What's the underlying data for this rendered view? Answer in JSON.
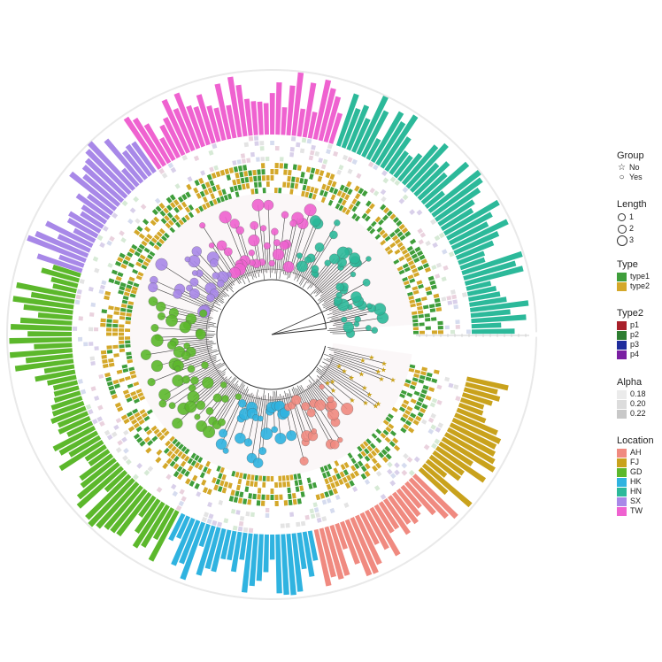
{
  "legends": {
    "group": {
      "title": "Group",
      "items": [
        {
          "label": "No",
          "symbol": "☆"
        },
        {
          "label": "Yes",
          "symbol": "○"
        }
      ]
    },
    "length": {
      "title": "Length",
      "items": [
        {
          "label": "1",
          "size": 1
        },
        {
          "label": "2",
          "size": 2
        },
        {
          "label": "3",
          "size": 3
        }
      ]
    },
    "type": {
      "title": "Type",
      "items": [
        {
          "label": "type1",
          "color": "#3f9e3b"
        },
        {
          "label": "type2",
          "color": "#d4a82a"
        }
      ]
    },
    "type2": {
      "title": "Type2",
      "items": [
        {
          "label": "p1",
          "color": "#a8202a"
        },
        {
          "label": "p2",
          "color": "#2e7d32"
        },
        {
          "label": "p3",
          "color": "#1f2c9c"
        },
        {
          "label": "p4",
          "color": "#7a1fa2"
        }
      ]
    },
    "alpha": {
      "title": "Alpha",
      "items": [
        {
          "label": "0.18",
          "color": "#ebebeb"
        },
        {
          "label": "0.20",
          "color": "#dcdcdc"
        },
        {
          "label": "0.22",
          "color": "#c8c8c8"
        }
      ]
    },
    "location": {
      "title": "Location",
      "items": [
        {
          "label": "AH",
          "color": "#f08a80"
        },
        {
          "label": "FJ",
          "color": "#c9a21c"
        },
        {
          "label": "GD",
          "color": "#5cb82c"
        },
        {
          "label": "HK",
          "color": "#2fb3e0"
        },
        {
          "label": "HN",
          "color": "#2cb99a"
        },
        {
          "label": "SX",
          "color": "#a888e8"
        },
        {
          "label": "TW",
          "color": "#ef62d0"
        }
      ]
    }
  },
  "tree": {
    "sectors": [
      {
        "location": "HN",
        "start": 0,
        "end": 72
      },
      {
        "location": "TW",
        "start": 72,
        "end": 125
      },
      {
        "location": "SX",
        "start": 125,
        "end": 162
      },
      {
        "location": "GD",
        "start": 162,
        "end": 243
      },
      {
        "location": "HK",
        "start": 243,
        "end": 282
      },
      {
        "location": "AH",
        "start": 282,
        "end": 317
      },
      {
        "location": "FJ",
        "start": 317,
        "end": 349
      }
    ]
  }
}
